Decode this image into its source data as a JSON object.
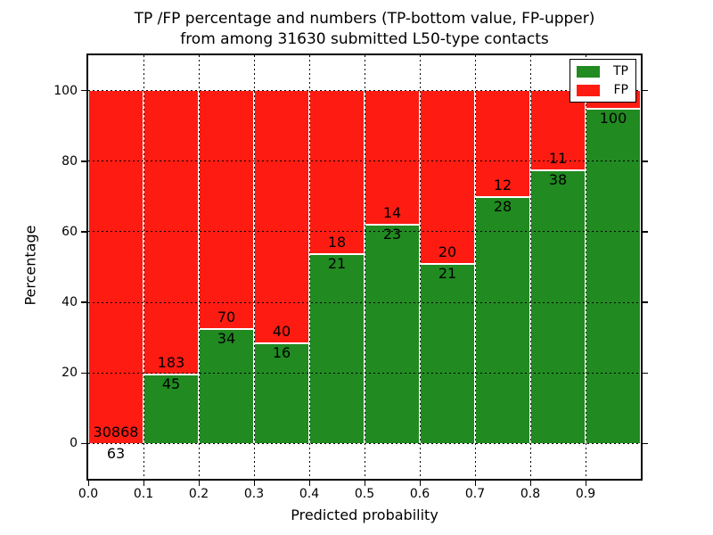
{
  "title": {
    "line1": "TP /FP percentage and numbers (TP-bottom value, FP-upper)",
    "line2": "from among 31630 submitted L50-type contacts"
  },
  "axes": {
    "xlabel": "Predicted probability",
    "ylabel": "Percentage",
    "x_tick_labels": [
      "0.0",
      "0.1",
      "0.2",
      "0.3",
      "0.4",
      "0.5",
      "0.6",
      "0.7",
      "0.8",
      "0.9"
    ],
    "y_tick_labels": [
      "0",
      "20",
      "40",
      "60",
      "80",
      "100"
    ]
  },
  "legend": {
    "items": [
      {
        "label": "TP",
        "color": "#218a21"
      },
      {
        "label": "FP",
        "color": "#fe1c12"
      }
    ]
  },
  "colors": {
    "tp_green": "#218a21",
    "fp_red": "#fe1c12",
    "grid": "#000000",
    "background": "#ffffff"
  },
  "chart_data": {
    "type": "bar",
    "stacked": true,
    "title": "TP /FP percentage and numbers (TP-bottom value, FP-upper) from among 31630 submitted L50-type contacts",
    "xlabel": "Predicted probability",
    "ylabel": "Percentage",
    "xlim": [
      0.0,
      1.0
    ],
    "ylim": [
      -10,
      110
    ],
    "grid": "dotted black, both axes, drawn over bars",
    "legend_position": "upper right",
    "total_submitted": 31630,
    "bin_edges": [
      0.0,
      0.1,
      0.2,
      0.3,
      0.4,
      0.5,
      0.6,
      0.7,
      0.8,
      0.9,
      1.0
    ],
    "series": [
      {
        "name": "TP",
        "color": "#218a21",
        "pct": [
          0.2,
          19.7,
          32.7,
          28.6,
          53.8,
          62.2,
          51.2,
          70.0,
          77.6,
          95.2
        ],
        "counts": [
          63,
          45,
          34,
          16,
          21,
          23,
          21,
          28,
          38,
          100
        ]
      },
      {
        "name": "FP",
        "color": "#fe1c12",
        "pct": [
          99.8,
          80.3,
          67.3,
          71.4,
          46.2,
          37.8,
          48.8,
          30.0,
          22.4,
          4.8
        ],
        "counts": [
          30868,
          183,
          70,
          40,
          18,
          14,
          20,
          12,
          11,
          null
        ]
      }
    ],
    "visible_bar_labels": {
      "tp": [
        "63",
        "45",
        "34",
        "16",
        "21",
        "23",
        "21",
        "28",
        "38",
        "100"
      ],
      "fp": [
        "30868",
        "183",
        "70",
        "40",
        "18",
        "14",
        "20",
        "12",
        "11",
        ""
      ]
    }
  }
}
